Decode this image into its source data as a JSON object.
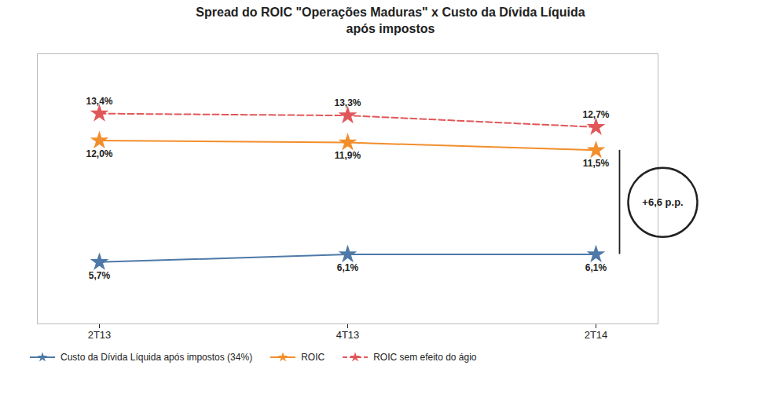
{
  "chart_data": {
    "type": "line",
    "title": "Spread do ROIC \"Operações Maduras\" x Custo da Dívida Líquida",
    "subtitle": "após impostos",
    "categories": [
      "2T13",
      "4T13",
      "2T14"
    ],
    "series": [
      {
        "name": "Custo da Dívida Líquida após impostos (34%)",
        "values": [
          5.7,
          6.1,
          6.1
        ],
        "value_labels": [
          "5,7%",
          "6,1%",
          "6,1%"
        ],
        "marker": "star",
        "line_style": "solid"
      },
      {
        "name": "ROIC",
        "values": [
          12.0,
          11.9,
          11.5
        ],
        "value_labels": [
          "12,0%",
          "11,9%",
          "11,5%"
        ],
        "marker": "star",
        "line_style": "solid"
      },
      {
        "name": "ROIC sem efeito do ágio",
        "values": [
          13.4,
          13.3,
          12.7
        ],
        "value_labels": [
          "13,4%",
          "13,3%",
          "12,7%"
        ],
        "marker": "star",
        "line_style": "dashed"
      }
    ],
    "ylim": [
      2.5,
      16.5
    ],
    "tick_labels": "x",
    "data_labels": true,
    "grid": false,
    "legend": "bottom",
    "annotations": [
      {
        "text": "+6,6 p.p.",
        "x": "2T14",
        "from": 6.1,
        "to": 11.5
      }
    ]
  }
}
